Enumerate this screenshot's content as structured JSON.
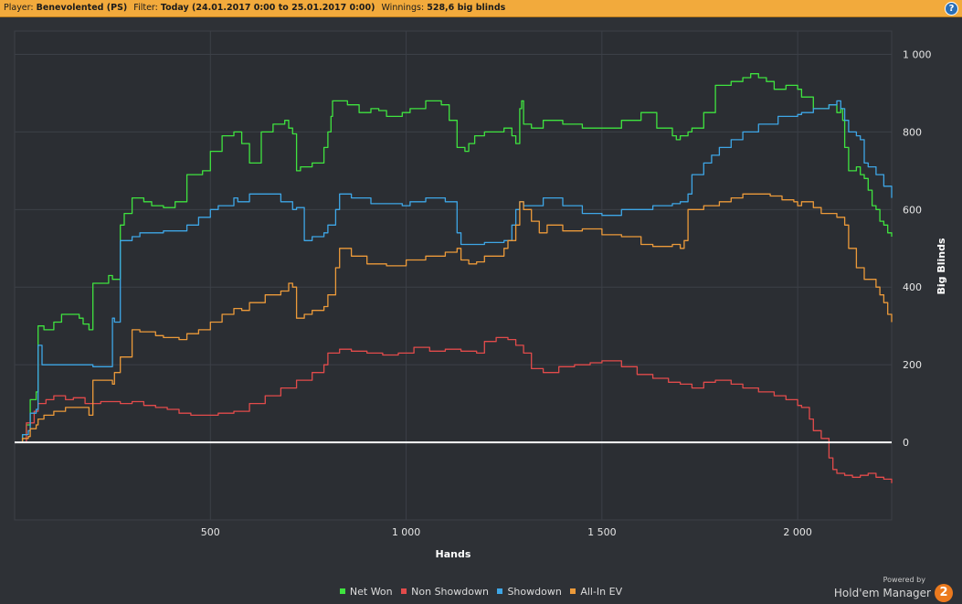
{
  "header": {
    "player_label": "Player:",
    "player": "Benevolented (PS)",
    "filter_label": "Filter:",
    "filter": "Today (24.01.2017 0:00 to 25.01.2017 0:00)",
    "winnings_label": "Winnings:",
    "winnings": "528,6 big blinds",
    "help": "?"
  },
  "footer": {
    "powered_by": "Powered by",
    "brand": "Hold'em Manager",
    "brand_logo": "2"
  },
  "chart_data": {
    "type": "line",
    "xlabel": "Hands",
    "ylabel": "Big Blinds",
    "xlim": [
      0,
      2240
    ],
    "ylim": [
      -200,
      1060
    ],
    "x_ticks": [
      500,
      1000,
      1500,
      2000
    ],
    "x_tick_labels": [
      "500",
      "1 000",
      "1 500",
      "2 000"
    ],
    "y_ticks": [
      0,
      200,
      400,
      600,
      800,
      1000
    ],
    "y_tick_labels": [
      "0",
      "200",
      "400",
      "600",
      "800",
      "1 000"
    ],
    "grid": true,
    "legend_position": "bottom",
    "series": [
      {
        "name": "Net Won",
        "color": "#3fe33f",
        "x": [
          0,
          20,
          30,
          40,
          55,
          60,
          75,
          100,
          120,
          165,
          175,
          190,
          200,
          240,
          250,
          270,
          280,
          300,
          330,
          350,
          380,
          410,
          440,
          480,
          500,
          530,
          560,
          580,
          600,
          630,
          660,
          690,
          700,
          710,
          720,
          730,
          760,
          790,
          800,
          808,
          812,
          850,
          880,
          910,
          930,
          950,
          990,
          1010,
          1050,
          1090,
          1110,
          1130,
          1140,
          1150,
          1160,
          1175,
          1200,
          1250,
          1270,
          1280,
          1290,
          1295,
          1300,
          1320,
          1350,
          1400,
          1450,
          1500,
          1550,
          1600,
          1640,
          1680,
          1690,
          1700,
          1720,
          1730,
          1760,
          1790,
          1830,
          1860,
          1880,
          1900,
          1920,
          1940,
          1970,
          2000,
          2010,
          2040,
          2080,
          2100,
          2110,
          2115,
          2120,
          2130,
          2150,
          2160,
          2170,
          2180,
          2190,
          2200,
          2210,
          2220,
          2230,
          2240
        ],
        "values": [
          0,
          20,
          45,
          110,
          130,
          300,
          290,
          310,
          330,
          320,
          305,
          290,
          410,
          430,
          420,
          560,
          590,
          630,
          620,
          610,
          605,
          620,
          690,
          700,
          750,
          790,
          800,
          770,
          720,
          800,
          820,
          830,
          810,
          795,
          700,
          710,
          720,
          760,
          800,
          840,
          880,
          870,
          850,
          860,
          855,
          840,
          850,
          860,
          880,
          870,
          830,
          760,
          760,
          750,
          770,
          790,
          800,
          810,
          790,
          770,
          860,
          880,
          820,
          810,
          830,
          820,
          810,
          810,
          830,
          850,
          810,
          790,
          780,
          790,
          800,
          810,
          850,
          920,
          930,
          940,
          950,
          940,
          930,
          910,
          920,
          910,
          890,
          860,
          870,
          850,
          860,
          830,
          760,
          700,
          710,
          690,
          680,
          650,
          610,
          600,
          570,
          560,
          540,
          530
        ]
      },
      {
        "name": "Non Showdown",
        "color": "#e24b4b",
        "x": [
          0,
          30,
          50,
          60,
          80,
          100,
          130,
          150,
          180,
          220,
          270,
          300,
          330,
          360,
          390,
          420,
          450,
          480,
          520,
          560,
          600,
          640,
          680,
          720,
          760,
          790,
          800,
          830,
          860,
          900,
          940,
          980,
          1020,
          1060,
          1100,
          1140,
          1180,
          1200,
          1230,
          1260,
          1280,
          1300,
          1320,
          1350,
          1390,
          1430,
          1470,
          1500,
          1550,
          1590,
          1630,
          1670,
          1700,
          1730,
          1760,
          1790,
          1830,
          1860,
          1900,
          1940,
          1970,
          2000,
          2010,
          2030,
          2040,
          2060,
          2080,
          2090,
          2100,
          2120,
          2140,
          2160,
          2180,
          2200,
          2220,
          2240
        ],
        "values": [
          0,
          50,
          80,
          100,
          110,
          120,
          110,
          115,
          100,
          105,
          100,
          105,
          95,
          90,
          85,
          75,
          70,
          70,
          75,
          80,
          100,
          120,
          140,
          160,
          180,
          200,
          230,
          240,
          235,
          230,
          225,
          230,
          245,
          235,
          240,
          235,
          230,
          260,
          270,
          265,
          250,
          230,
          190,
          180,
          195,
          200,
          205,
          210,
          195,
          175,
          165,
          155,
          150,
          140,
          155,
          160,
          150,
          140,
          130,
          120,
          110,
          95,
          90,
          60,
          30,
          10,
          -40,
          -70,
          -80,
          -85,
          -90,
          -85,
          -80,
          -90,
          -95,
          -105
        ]
      },
      {
        "name": "Showdown",
        "color": "#3ea6e6",
        "x": [
          0,
          20,
          35,
          40,
          55,
          60,
          70,
          130,
          190,
          200,
          250,
          255,
          270,
          300,
          320,
          360,
          380,
          420,
          440,
          470,
          500,
          520,
          560,
          570,
          600,
          640,
          680,
          700,
          710,
          720,
          740,
          760,
          790,
          800,
          820,
          830,
          860,
          910,
          990,
          1010,
          1050,
          1100,
          1130,
          1140,
          1180,
          1200,
          1250,
          1270,
          1280,
          1290,
          1300,
          1340,
          1350,
          1400,
          1450,
          1500,
          1550,
          1600,
          1630,
          1680,
          1700,
          1720,
          1730,
          1760,
          1780,
          1800,
          1830,
          1860,
          1900,
          1950,
          2000,
          2010,
          2040,
          2080,
          2100,
          2110,
          2120,
          2130,
          2150,
          2160,
          2170,
          2180,
          2200,
          2220,
          2240
        ],
        "values": [
          0,
          20,
          30,
          75,
          85,
          250,
          200,
          200,
          200,
          195,
          320,
          310,
          520,
          530,
          540,
          540,
          545,
          545,
          560,
          580,
          600,
          610,
          630,
          620,
          640,
          640,
          620,
          620,
          600,
          605,
          520,
          530,
          540,
          560,
          600,
          640,
          630,
          615,
          610,
          620,
          630,
          620,
          540,
          510,
          510,
          515,
          520,
          560,
          600,
          620,
          610,
          610,
          630,
          610,
          590,
          585,
          600,
          600,
          610,
          615,
          620,
          640,
          690,
          720,
          740,
          760,
          780,
          800,
          820,
          840,
          845,
          850,
          860,
          870,
          880,
          860,
          830,
          800,
          790,
          780,
          720,
          710,
          690,
          660,
          630
        ]
      },
      {
        "name": "All-In EV",
        "color": "#ec9a3a",
        "x": [
          0,
          20,
          35,
          40,
          55,
          60,
          75,
          100,
          130,
          190,
          200,
          250,
          255,
          270,
          300,
          320,
          360,
          380,
          420,
          440,
          470,
          500,
          530,
          560,
          580,
          600,
          640,
          680,
          700,
          710,
          720,
          740,
          760,
          790,
          800,
          820,
          830,
          860,
          900,
          950,
          1000,
          1050,
          1100,
          1130,
          1140,
          1160,
          1180,
          1200,
          1250,
          1260,
          1280,
          1290,
          1300,
          1320,
          1340,
          1360,
          1400,
          1450,
          1500,
          1550,
          1600,
          1630,
          1680,
          1700,
          1710,
          1720,
          1760,
          1800,
          1830,
          1860,
          1900,
          1930,
          1960,
          1990,
          2000,
          2010,
          2040,
          2060,
          2080,
          2100,
          2110,
          2120,
          2130,
          2150,
          2170,
          2190,
          2200,
          2210,
          2220,
          2230,
          2240
        ],
        "values": [
          0,
          10,
          15,
          35,
          45,
          60,
          70,
          80,
          90,
          70,
          160,
          150,
          180,
          220,
          290,
          285,
          275,
          270,
          265,
          280,
          290,
          310,
          330,
          345,
          340,
          360,
          380,
          390,
          410,
          400,
          320,
          330,
          340,
          350,
          380,
          450,
          500,
          480,
          460,
          455,
          470,
          480,
          490,
          500,
          470,
          460,
          465,
          480,
          500,
          520,
          560,
          620,
          600,
          570,
          540,
          560,
          545,
          550,
          535,
          530,
          510,
          505,
          510,
          500,
          520,
          600,
          610,
          620,
          630,
          640,
          640,
          635,
          625,
          620,
          610,
          620,
          605,
          590,
          590,
          580,
          580,
          560,
          500,
          450,
          420,
          420,
          400,
          380,
          360,
          330,
          310
        ]
      }
    ]
  }
}
